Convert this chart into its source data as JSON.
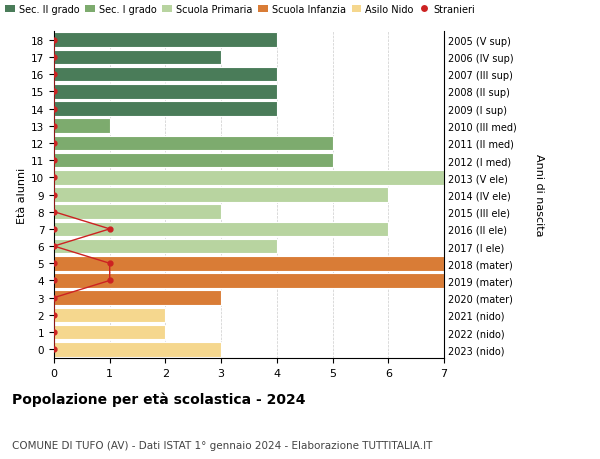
{
  "ages": [
    18,
    17,
    16,
    15,
    14,
    13,
    12,
    11,
    10,
    9,
    8,
    7,
    6,
    5,
    4,
    3,
    2,
    1,
    0
  ],
  "years": [
    "2005 (V sup)",
    "2006 (IV sup)",
    "2007 (III sup)",
    "2008 (II sup)",
    "2009 (I sup)",
    "2010 (III med)",
    "2011 (II med)",
    "2012 (I med)",
    "2013 (V ele)",
    "2014 (IV ele)",
    "2015 (III ele)",
    "2016 (II ele)",
    "2017 (I ele)",
    "2018 (mater)",
    "2019 (mater)",
    "2020 (mater)",
    "2021 (nido)",
    "2022 (nido)",
    "2023 (nido)"
  ],
  "values": [
    4,
    3,
    4,
    4,
    4,
    1,
    5,
    5,
    7,
    6,
    3,
    6,
    4,
    7,
    7,
    3,
    2,
    2,
    3
  ],
  "colors": [
    "#4a7c59",
    "#4a7c59",
    "#4a7c59",
    "#4a7c59",
    "#4a7c59",
    "#7dab6e",
    "#7dab6e",
    "#7dab6e",
    "#b8d4a0",
    "#b8d4a0",
    "#b8d4a0",
    "#b8d4a0",
    "#b8d4a0",
    "#d97c36",
    "#d97c36",
    "#d97c36",
    "#f5d78e",
    "#f5d78e",
    "#f5d78e"
  ],
  "stranieri_values": [
    0,
    0,
    0,
    0,
    0,
    0,
    0,
    0,
    0,
    0,
    0,
    1,
    0,
    1,
    1,
    0,
    0,
    0,
    0
  ],
  "legend_labels": [
    "Sec. II grado",
    "Sec. I grado",
    "Scuola Primaria",
    "Scuola Infanzia",
    "Asilo Nido",
    "Stranieri"
  ],
  "legend_colors": [
    "#4a7c59",
    "#7dab6e",
    "#b8d4a0",
    "#d97c36",
    "#f5d78e",
    "#cc2222"
  ],
  "title": "Popolazione per età scolastica - 2024",
  "subtitle": "COMUNE DI TUFO (AV) - Dati ISTAT 1° gennaio 2024 - Elaborazione TUTTITALIA.IT",
  "ylabel_left": "Età alunni",
  "ylabel_right": "Anni di nascita",
  "xlim": [
    0,
    7
  ],
  "ylim": [
    -0.5,
    18.5
  ],
  "background_color": "#ffffff",
  "bar_edge_color": "#ffffff",
  "grid_color": "#cccccc",
  "stranieri_color": "#cc2222"
}
